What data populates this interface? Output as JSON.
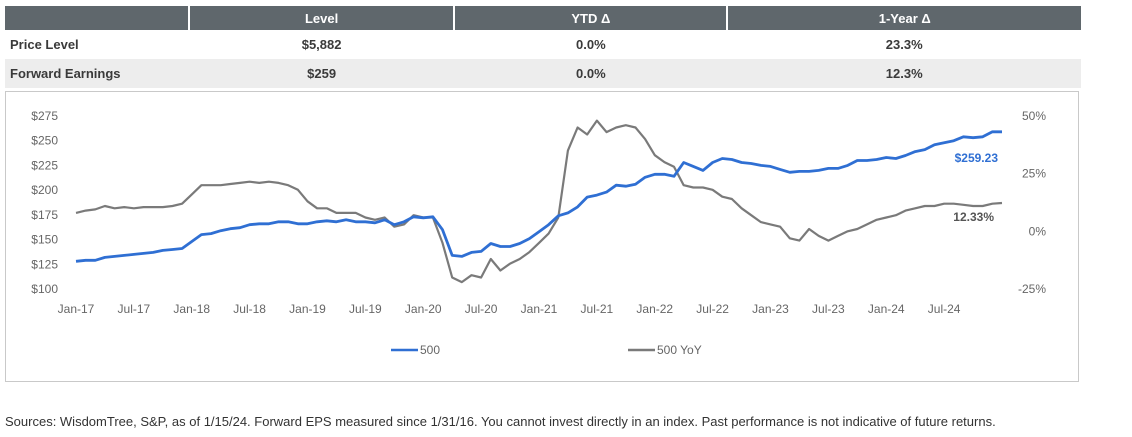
{
  "table": {
    "headers": [
      "",
      "Level",
      "YTD Δ",
      "1-Year Δ"
    ],
    "rows": [
      {
        "label": "Price Level",
        "level": "$5,882",
        "ytd": "0.0%",
        "one_year": "23.3%"
      },
      {
        "label": "Forward Earnings",
        "level": "$259",
        "ytd": "0.0%",
        "one_year": "12.3%"
      }
    ]
  },
  "chart_data": {
    "type": "line",
    "x": [
      "Jan-17",
      "Feb-17",
      "Mar-17",
      "Apr-17",
      "May-17",
      "Jun-17",
      "Jul-17",
      "Aug-17",
      "Sep-17",
      "Oct-17",
      "Nov-17",
      "Dec-17",
      "Jan-18",
      "Feb-18",
      "Mar-18",
      "Apr-18",
      "May-18",
      "Jun-18",
      "Jul-18",
      "Aug-18",
      "Sep-18",
      "Oct-18",
      "Nov-18",
      "Dec-18",
      "Jan-19",
      "Feb-19",
      "Mar-19",
      "Apr-19",
      "May-19",
      "Jun-19",
      "Jul-19",
      "Aug-19",
      "Sep-19",
      "Oct-19",
      "Nov-19",
      "Dec-19",
      "Jan-20",
      "Feb-20",
      "Mar-20",
      "Apr-20",
      "May-20",
      "Jun-20",
      "Jul-20",
      "Aug-20",
      "Sep-20",
      "Oct-20",
      "Nov-20",
      "Dec-20",
      "Jan-21",
      "Feb-21",
      "Mar-21",
      "Apr-21",
      "May-21",
      "Jun-21",
      "Jul-21",
      "Aug-21",
      "Sep-21",
      "Oct-21",
      "Nov-21",
      "Dec-21",
      "Jan-22",
      "Feb-22",
      "Mar-22",
      "Apr-22",
      "May-22",
      "Jun-22",
      "Jul-22",
      "Aug-22",
      "Sep-22",
      "Oct-22",
      "Nov-22",
      "Dec-22",
      "Jan-23",
      "Feb-23",
      "Mar-23",
      "Apr-23",
      "May-23",
      "Jun-23",
      "Jul-23",
      "Aug-23",
      "Sep-23",
      "Oct-23",
      "Nov-23",
      "Dec-23",
      "Jan-24",
      "Feb-24",
      "Mar-24",
      "Apr-24",
      "May-24",
      "Jun-24",
      "Jul-24",
      "Aug-24",
      "Sep-24",
      "Oct-24",
      "Nov-24",
      "Dec-24",
      "Jan-25"
    ],
    "x_tick_labels": [
      "Jan-17",
      "Jul-17",
      "Jan-18",
      "Jul-18",
      "Jan-19",
      "Jul-19",
      "Jan-20",
      "Jul-20",
      "Jan-21",
      "Jul-21",
      "Jan-22",
      "Jul-22",
      "Jan-23",
      "Jul-23",
      "Jan-24",
      "Jul-24"
    ],
    "series": [
      {
        "name": "500",
        "axis": "left",
        "color": "#2f6fd3",
        "values": [
          128,
          129,
          129,
          132,
          133,
          134,
          135,
          136,
          137,
          139,
          140,
          141,
          148,
          155,
          156,
          159,
          161,
          162,
          165,
          166,
          166,
          168,
          168,
          166,
          166,
          168,
          169,
          168,
          170,
          168,
          168,
          167,
          170,
          165,
          168,
          173,
          172,
          173,
          160,
          134,
          133,
          137,
          138,
          146,
          143,
          143,
          146,
          151,
          158,
          165,
          174,
          177,
          183,
          193,
          195,
          198,
          205,
          204,
          206,
          213,
          216,
          216,
          214,
          228,
          224,
          220,
          228,
          232,
          231,
          228,
          227,
          225,
          224,
          221,
          218,
          219,
          219,
          220,
          222,
          222,
          225,
          230,
          230,
          231,
          233,
          232,
          235,
          239,
          241,
          246,
          248,
          250,
          254,
          253,
          254,
          259,
          259
        ]
      },
      {
        "name": "500 YoY",
        "axis": "right",
        "color": "#7a7a7a",
        "values": [
          8,
          9,
          9.5,
          11,
          10,
          10.5,
          10,
          10.5,
          10.5,
          10.5,
          11,
          12,
          16,
          20,
          20,
          20,
          20.5,
          21,
          21.5,
          21,
          21.5,
          21,
          20,
          18,
          13,
          10,
          10,
          8,
          8,
          8,
          6,
          5,
          6,
          2,
          3,
          7,
          6,
          6,
          -5,
          -20,
          -22,
          -19,
          -20,
          -12,
          -17,
          -14,
          -12,
          -9,
          -5,
          -1,
          6,
          35,
          45,
          42,
          48,
          43,
          45,
          46,
          45,
          40,
          33,
          30,
          28,
          20,
          19,
          19,
          18,
          15,
          14,
          10,
          7,
          4,
          3,
          2,
          -3,
          -4,
          1,
          -2,
          -4,
          -2,
          0,
          1,
          3,
          5,
          6,
          7,
          9,
          10,
          11,
          11,
          12,
          12,
          11.5,
          11,
          11,
          12,
          12.3
        ]
      }
    ],
    "left_axis": {
      "min": 100,
      "max": 275,
      "ticks": [
        "$100",
        "$125",
        "$150",
        "$175",
        "$200",
        "$225",
        "$250",
        "$275"
      ]
    },
    "right_axis": {
      "min": -25,
      "max": 50,
      "ticks": [
        "-25%",
        "0%",
        "25%",
        "50%"
      ]
    },
    "end_labels": {
      "series_500": "$259.23",
      "series_yoy": "12.33%"
    },
    "legend": [
      "500",
      "500 YoY"
    ],
    "legend_placement": "bottom"
  },
  "source_note": "Sources: WisdomTree, S&P, as of 1/15/24. Forward EPS measured since 1/31/16. You cannot invest directly in an index. Past performance is not indicative of future returns."
}
